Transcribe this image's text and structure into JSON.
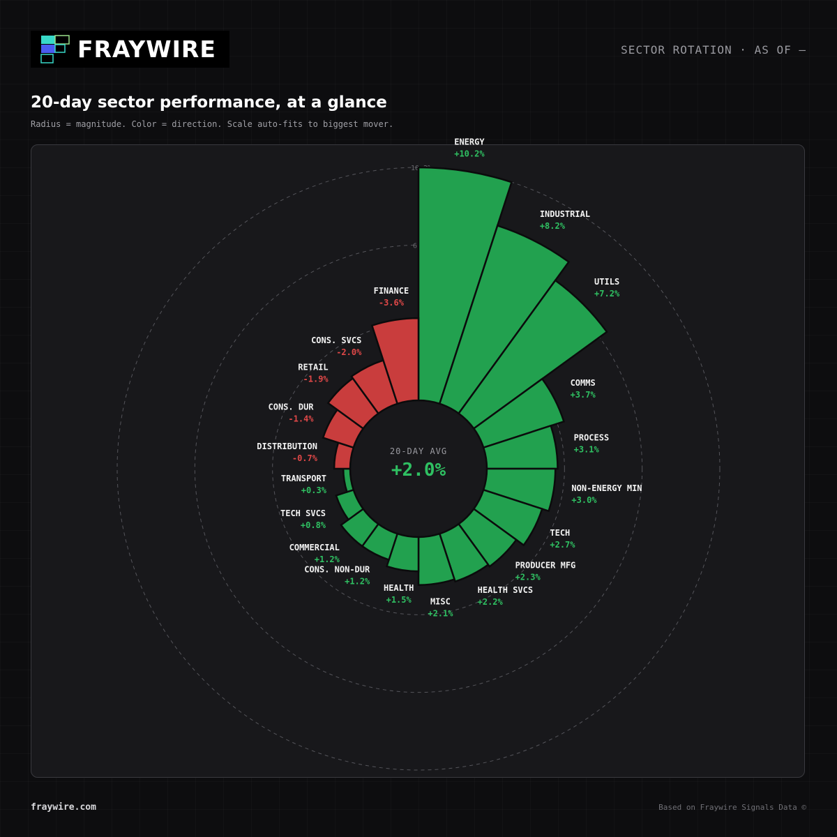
{
  "brand": {
    "name": "FRAYWIRE",
    "url": "fraywire.com"
  },
  "header": {
    "right_label": "SECTOR ROTATION · AS OF —"
  },
  "title": "20-day sector performance, at a glance",
  "subtitle": "Radius = magnitude. Color = direction. Scale auto-fits to biggest mover.",
  "center": {
    "label": "20-DAY AVG",
    "value": "+2.0%"
  },
  "footer": {
    "credit": "Based on Fraywire Signals Data ©"
  },
  "colors": {
    "positive": "#22a14f",
    "positive_text": "#2fc062",
    "negative": "#c93d3d",
    "negative_text": "#e04848",
    "logo_cyan": "#38d9c8",
    "logo_blue": "#4a5cf0",
    "logo_green": "#9be08a"
  },
  "chart_data": {
    "type": "polar-bar",
    "title": "20-day sector performance, at a glance",
    "rings": [
      "3.4%",
      "6.8%",
      "10.2%"
    ],
    "radial_max": 10.2,
    "average": 2.0,
    "order": "descending clockwise from top",
    "categories": [
      "ENERGY",
      "INDUSTRIAL",
      "UTILS",
      "COMMS",
      "PROCESS",
      "NON-ENERGY MIN",
      "TECH",
      "PRODUCER MFG",
      "HEALTH SVCS",
      "MISC",
      "HEALTH",
      "CONS. NON-DUR",
      "COMMERCIAL",
      "TECH SVCS",
      "TRANSPORT",
      "DISTRIBUTION",
      "CONS. DUR",
      "RETAIL",
      "CONS. SVCS",
      "FINANCE"
    ],
    "values": [
      10.2,
      8.2,
      7.2,
      3.7,
      3.1,
      3.0,
      2.7,
      2.3,
      2.2,
      2.1,
      1.5,
      1.2,
      1.2,
      0.8,
      0.3,
      -0.7,
      -1.4,
      -1.9,
      -2.0,
      -3.6
    ],
    "value_labels": [
      "+10.2%",
      "+8.2%",
      "+7.2%",
      "+3.7%",
      "+3.1%",
      "+3.0%",
      "+2.7%",
      "+2.3%",
      "+2.2%",
      "+2.1%",
      "+1.5%",
      "+1.2%",
      "+1.2%",
      "+0.8%",
      "+0.3%",
      "-0.7%",
      "-1.4%",
      "-1.9%",
      "-2.0%",
      "-3.6%"
    ]
  }
}
